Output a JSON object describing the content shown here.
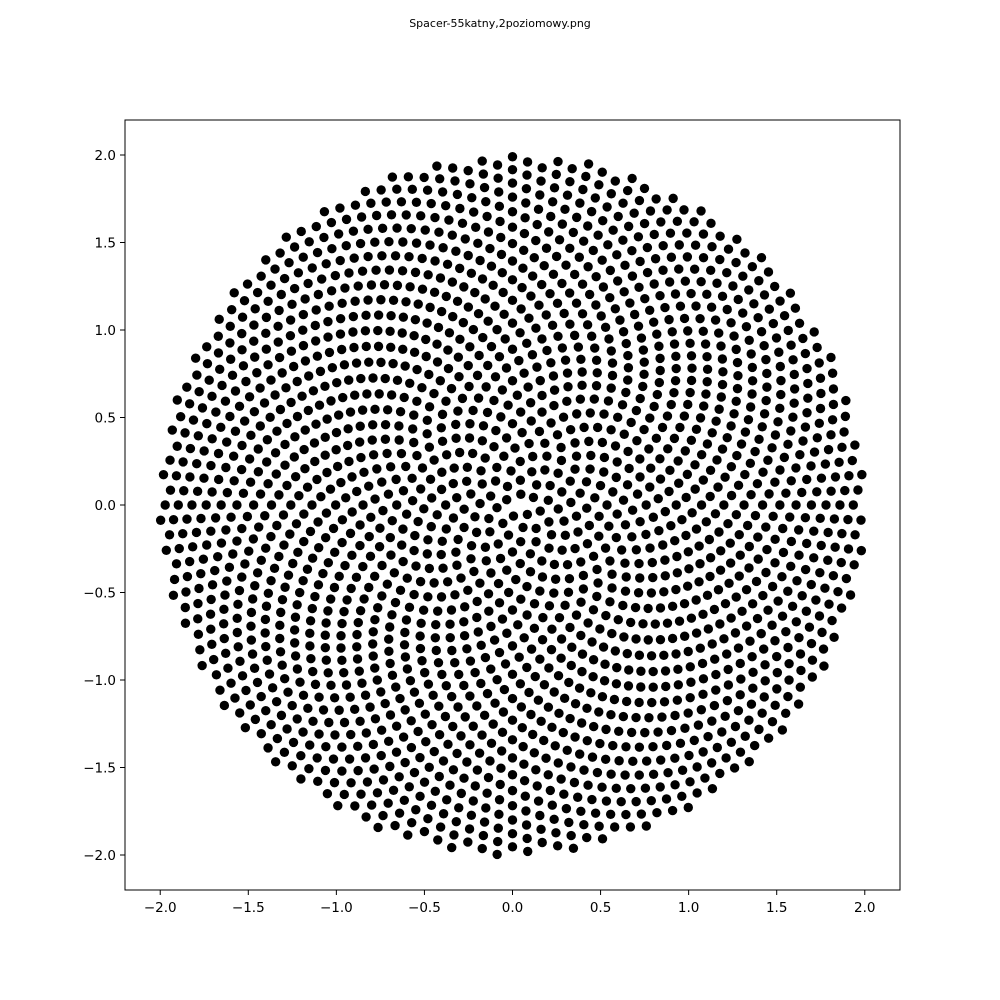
{
  "figure": {
    "title": "Spacer-55katny,2poziomowy.png"
  },
  "chart_data": {
    "type": "scatter",
    "title": "Spacer-55katny,2poziomowy.png",
    "xlabel": "",
    "ylabel": "",
    "xlim": [
      -2.2,
      2.2
    ],
    "ylim": [
      -2.2,
      2.2
    ],
    "x_ticks": [
      "−2.0",
      "−1.5",
      "−1.0",
      "−0.5",
      "0.0",
      "0.5",
      "1.0",
      "1.5",
      "2.0"
    ],
    "y_ticks": [
      "2.0",
      "1.5",
      "1.0",
      "0.5",
      "0.0",
      "−0.5",
      "−1.0",
      "−1.5",
      "−2.0"
    ],
    "grid": false,
    "legend": "none",
    "marker_color": "#000000",
    "series": [
      {
        "pattern": "golden-angle spiral (sunflower) points inside a disc of radius 2.0",
        "count": 2000,
        "radius": 2.0,
        "angle_step_deg": 137.5
      }
    ]
  }
}
